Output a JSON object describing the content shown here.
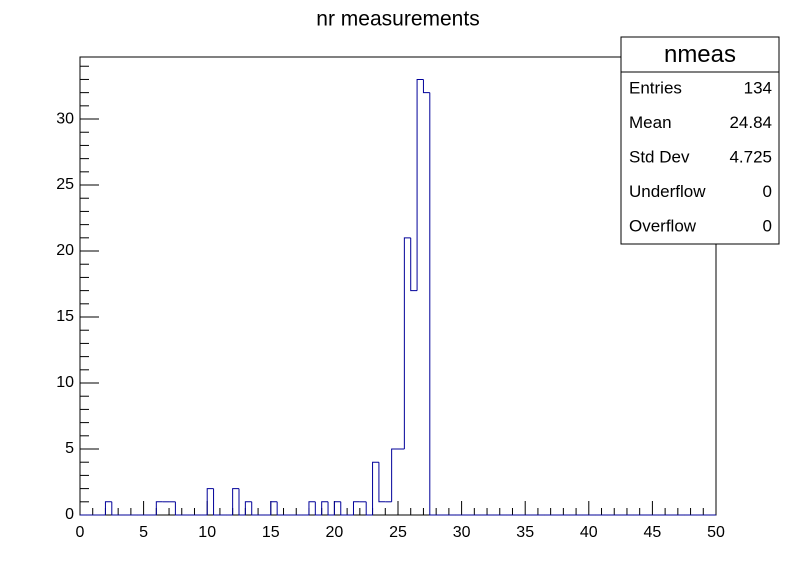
{
  "chart_data": {
    "type": "histogram",
    "title": "nr measurements",
    "bins": [
      0,
      0.5,
      1,
      1.5,
      2,
      2.5,
      3,
      3.5,
      4,
      4.5,
      5,
      5.5,
      6,
      6.5,
      7,
      7.5,
      8,
      8.5,
      9,
      9.5,
      10,
      10.5,
      11,
      11.5,
      12,
      12.5,
      13,
      13.5,
      14,
      14.5,
      15,
      15.5,
      16,
      16.5,
      17,
      17.5,
      18,
      18.5,
      19,
      19.5,
      20,
      20.5,
      21,
      21.5,
      22,
      22.5,
      23,
      23.5,
      24,
      24.5,
      25,
      25.5,
      26,
      26.5,
      27,
      27.5,
      28,
      28.5,
      29,
      29.5,
      30,
      30.5,
      31,
      31.5,
      32,
      32.5,
      33,
      33.5,
      34,
      34.5,
      35,
      35.5,
      36,
      36.5,
      37,
      37.5,
      38,
      38.5,
      39,
      39.5,
      40,
      40.5,
      41,
      41.5,
      42,
      42.5,
      43,
      43.5,
      44,
      44.5,
      45,
      45.5,
      46,
      46.5,
      47,
      47.5,
      48,
      48.5,
      49,
      49.5,
      50
    ],
    "values": [
      0,
      0,
      0,
      0,
      1,
      0,
      0,
      0,
      0,
      0,
      0,
      0,
      1,
      1,
      1,
      0,
      0,
      0,
      0,
      0,
      2,
      0,
      0,
      0,
      2,
      0,
      1,
      0,
      0,
      0,
      1,
      0,
      0,
      0,
      0,
      0,
      1,
      0,
      1,
      0,
      1,
      0,
      0,
      1,
      1,
      0,
      4,
      1,
      1,
      5,
      5,
      21,
      17,
      33,
      32,
      0,
      0,
      0,
      0,
      0,
      0,
      0,
      0,
      0,
      0,
      0,
      0,
      0,
      0,
      0,
      0,
      0,
      0,
      0,
      0,
      0,
      0,
      0,
      0,
      0,
      0,
      0,
      0,
      0,
      0,
      0,
      0,
      0,
      0,
      0,
      0,
      0,
      0,
      0,
      0,
      0,
      0,
      0,
      0,
      0
    ],
    "color": "#000099",
    "xlim": [
      0,
      50
    ],
    "xticks": [
      0,
      5,
      10,
      15,
      20,
      25,
      30,
      35,
      40,
      45,
      50
    ],
    "ylim": [
      0,
      34.7
    ],
    "yticks": [
      0,
      5,
      10,
      15,
      20,
      25,
      30
    ],
    "stats": {
      "title": "nmeas",
      "rows": [
        {
          "label": "Entries",
          "value": 134
        },
        {
          "label": "Mean",
          "value": 24.84
        },
        {
          "label": "Std Dev",
          "value": 4.725
        },
        {
          "label": "Underflow",
          "value": 0
        },
        {
          "label": "Overflow",
          "value": 0
        }
      ]
    }
  }
}
